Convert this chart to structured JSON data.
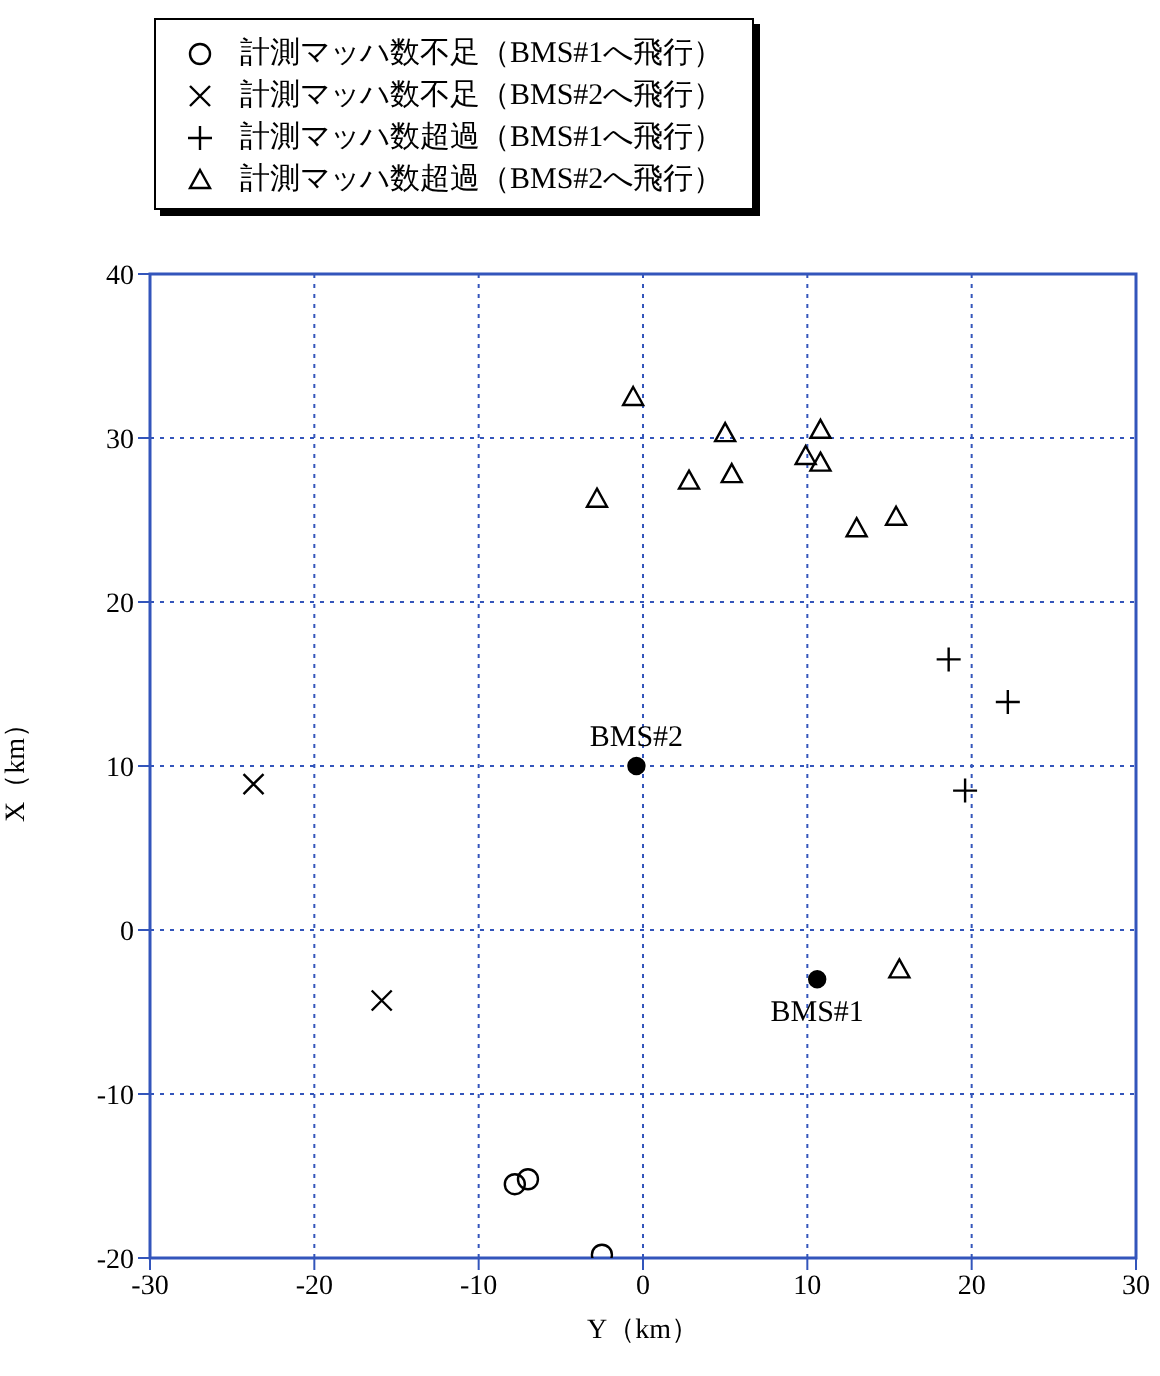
{
  "chart_data": {
    "type": "scatter",
    "xlabel": "Y（km）",
    "ylabel": "X（km）",
    "xlim": [
      -30,
      30
    ],
    "xticks": [
      -30,
      -20,
      -10,
      0,
      10,
      20,
      30
    ],
    "ylim": [
      -20,
      40
    ],
    "yticks": [
      -20,
      -10,
      0,
      10,
      20,
      30,
      40
    ],
    "grid": true,
    "legend": "top",
    "series": [
      {
        "name": "計測マッハ数不足（BMS#1へ飛行）",
        "color": "#000000",
        "marker": "circle",
        "x": [
          -7.8,
          -7.0,
          -2.5
        ],
        "values": [
          -15.5,
          -15.2,
          -19.8
        ]
      },
      {
        "name": "計測マッハ数不足（BMS#2へ飛行）",
        "color": "#000000",
        "marker": "x",
        "x": [
          -23.7,
          -15.9
        ],
        "values": [
          8.9,
          -4.3
        ]
      },
      {
        "name": "計測マッハ数超過（BMS#1へ飛行）",
        "color": "#000000",
        "marker": "cross",
        "x": [
          18.6,
          22.2,
          19.6
        ],
        "values": [
          16.5,
          13.9,
          8.5
        ]
      },
      {
        "name": "計測マッハ数超過（BMS#2へ飛行）",
        "color": "#000000",
        "marker": "triangle",
        "x": [
          -0.6,
          5.0,
          10.8,
          9.9,
          10.8,
          2.8,
          5.4,
          -2.8,
          13.0,
          15.4,
          15.6
        ],
        "values": [
          32.5,
          30.3,
          30.5,
          28.9,
          28.5,
          27.4,
          27.8,
          26.3,
          24.5,
          25.2,
          -2.4
        ]
      },
      {
        "color": "#000000",
        "marker": "circle",
        "x": [
          -0.4,
          10.6
        ],
        "values": [
          10.0,
          -3.0
        ]
      }
    ],
    "annotations": [
      {
        "text": "BMS#2",
        "x": -0.4,
        "y": 10.0
      },
      {
        "text": "BMS#1",
        "x": 10.6,
        "y": -3.0
      }
    ]
  }
}
